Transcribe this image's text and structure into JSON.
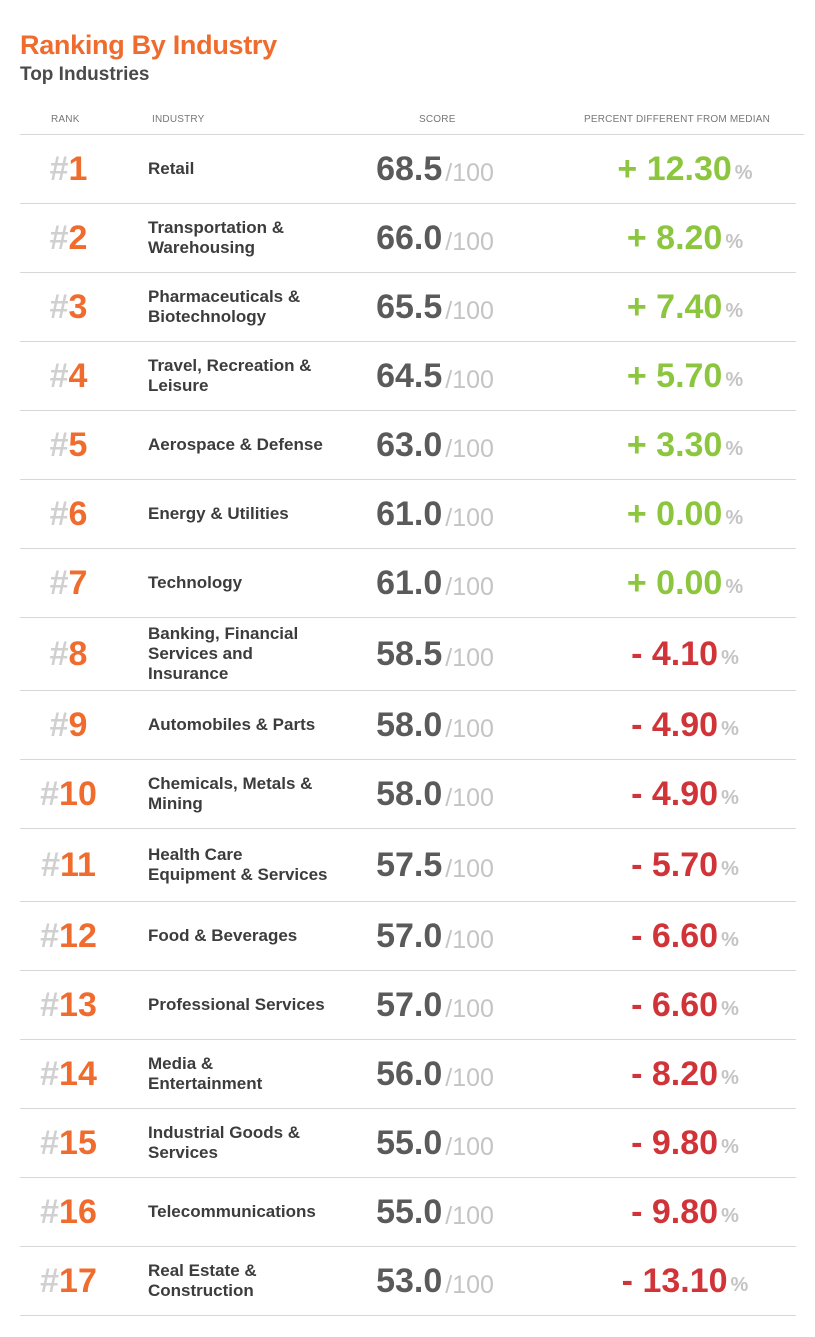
{
  "title": "Ranking By Industry",
  "subtitle": "Top Industries",
  "headers": {
    "rank": "RANK",
    "industry": "INDUSTRY",
    "score": "SCORE",
    "percent": "PERCENT DIFFERENT FROM MEDIAN"
  },
  "colors": {
    "accent": "#ef6c2e",
    "positive": "#8cc63f",
    "negative": "#d13438",
    "muted": "#c4c4c4"
  },
  "hash": "#",
  "score_max": "/100",
  "percent_symbol": "%",
  "rows": [
    {
      "rank": "1",
      "industry": "Retail",
      "score": "68.5",
      "percent": "+ 12.30",
      "sign": "pos"
    },
    {
      "rank": "2",
      "industry": "Transportation & Warehousing",
      "score": "66.0",
      "percent": "+ 8.20",
      "sign": "pos"
    },
    {
      "rank": "3",
      "industry": "Pharmaceuticals & Biotechnology",
      "score": "65.5",
      "percent": "+ 7.40",
      "sign": "pos"
    },
    {
      "rank": "4",
      "industry": "Travel, Recreation & Leisure",
      "score": "64.5",
      "percent": "+ 5.70",
      "sign": "pos"
    },
    {
      "rank": "5",
      "industry": "Aerospace & Defense",
      "score": "63.0",
      "percent": "+ 3.30",
      "sign": "pos"
    },
    {
      "rank": "6",
      "industry": "Energy & Utilities",
      "score": "61.0",
      "percent": "+ 0.00",
      "sign": "pos"
    },
    {
      "rank": "7",
      "industry": "Technology",
      "score": "61.0",
      "percent": "+ 0.00",
      "sign": "pos"
    },
    {
      "rank": "8",
      "industry": "Banking, Financial Services and Insurance",
      "score": "58.5",
      "percent": "- 4.10",
      "sign": "neg"
    },
    {
      "rank": "9",
      "industry": "Automobiles & Parts",
      "score": "58.0",
      "percent": "- 4.90",
      "sign": "neg"
    },
    {
      "rank": "10",
      "industry": "Chemicals, Metals & Mining",
      "score": "58.0",
      "percent": "- 4.90",
      "sign": "neg"
    },
    {
      "rank": "11",
      "industry": "Health Care Equipment & Services",
      "score": "57.5",
      "percent": "- 5.70",
      "sign": "neg"
    },
    {
      "rank": "12",
      "industry": "Food & Beverages",
      "score": "57.0",
      "percent": "- 6.60",
      "sign": "neg"
    },
    {
      "rank": "13",
      "industry": "Professional Services",
      "score": "57.0",
      "percent": "- 6.60",
      "sign": "neg"
    },
    {
      "rank": "14",
      "industry": "Media & Entertainment",
      "score": "56.0",
      "percent": "- 8.20",
      "sign": "neg"
    },
    {
      "rank": "15",
      "industry": "Industrial Goods & Services",
      "score": "55.0",
      "percent": "- 9.80",
      "sign": "neg"
    },
    {
      "rank": "16",
      "industry": "Telecommunications",
      "score": "55.0",
      "percent": "- 9.80",
      "sign": "neg"
    },
    {
      "rank": "17",
      "industry": "Real Estate & Construction",
      "score": "53.0",
      "percent": "- 13.10",
      "sign": "neg"
    }
  ]
}
